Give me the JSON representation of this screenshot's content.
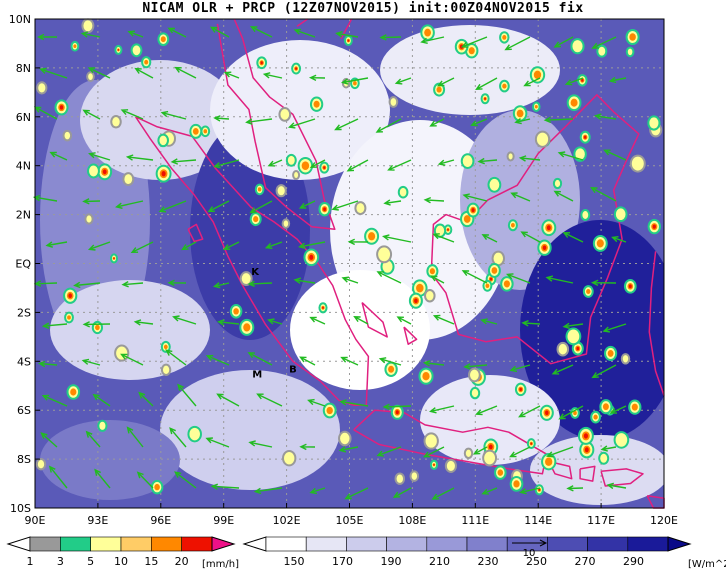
{
  "title": "NICAM OLR + PRCP (12Z07NOV2015) init:00Z04NOV2015 fix",
  "map": {
    "lon_labels": [
      "90E",
      "93E",
      "96E",
      "99E",
      "102E",
      "105E",
      "108E",
      "111E",
      "114E",
      "117E",
      "120E"
    ],
    "lat_labels": [
      "10N",
      "8N",
      "6N",
      "4N",
      "2N",
      "EQ",
      "2S",
      "4S",
      "6S",
      "8S",
      "10S"
    ],
    "lon_range": [
      90,
      120
    ],
    "lat_range": [
      -10,
      10
    ],
    "sites": [
      {
        "label": "K",
        "lon": 100.5,
        "lat": -0.3
      },
      {
        "label": "M",
        "lon": 100.6,
        "lat": -4.5
      },
      {
        "label": "B",
        "lon": 102.3,
        "lat": -4.3
      }
    ],
    "colors": {
      "coast": "#e0207f",
      "wind": "#22bb22",
      "grid": "#9a9a9a"
    }
  },
  "precip_bar": {
    "unit": "[mm/h]",
    "ticks": [
      "1",
      "3",
      "5",
      "10",
      "15",
      "20"
    ],
    "colors": [
      "#999999",
      "#22cc88",
      "#ffff99",
      "#ffcc66",
      "#ff8800",
      "#ee1100",
      "#ee1188"
    ]
  },
  "olr_bar": {
    "unit": "[W/m^2]",
    "ticks": [
      "150",
      "170",
      "190",
      "210",
      "230",
      "250",
      "270",
      "290"
    ],
    "colors": [
      "#ffffff",
      "#e6e6f5",
      "#ccccec",
      "#b3b3e2",
      "#9999d8",
      "#8080cc",
      "#6666c0",
      "#4d4db3",
      "#3333a6",
      "#1a1a99",
      "#0a0a88"
    ],
    "vector_label": "10"
  }
}
